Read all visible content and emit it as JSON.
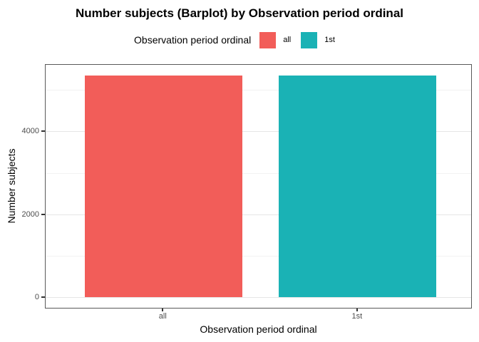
{
  "chart_data": {
    "type": "bar",
    "title": "Number subjects (Barplot) by Observation period ordinal",
    "xlabel": "Observation period ordinal",
    "ylabel": "Number subjects",
    "categories": [
      "all",
      "1st"
    ],
    "values": [
      5350,
      5350
    ],
    "bar_colors": [
      "#F25D59",
      "#1AB2B5"
    ],
    "yticks": [
      0,
      2000,
      4000
    ],
    "ytick_labels": [
      "0",
      "2000",
      "4000"
    ],
    "major_gridlines": [
      0,
      2000,
      4000
    ],
    "minor_gridlines": [
      1000,
      3000,
      5000
    ],
    "ylim": [
      0,
      5618
    ],
    "grid": "on",
    "legend_position": "top",
    "legend": {
      "title": "Observation period ordinal",
      "items": [
        {
          "label": "all",
          "color": "#F25D59"
        },
        {
          "label": "1st",
          "color": "#1AB2B5"
        }
      ]
    }
  },
  "colors": {
    "panel_border": "#595959",
    "panel_background": "#FFFFFF",
    "grid_major": "#E6E6E6",
    "grid_minor": "#F2F2F2",
    "axis_text": "#4D4D4D",
    "title_text": "#000000"
  }
}
